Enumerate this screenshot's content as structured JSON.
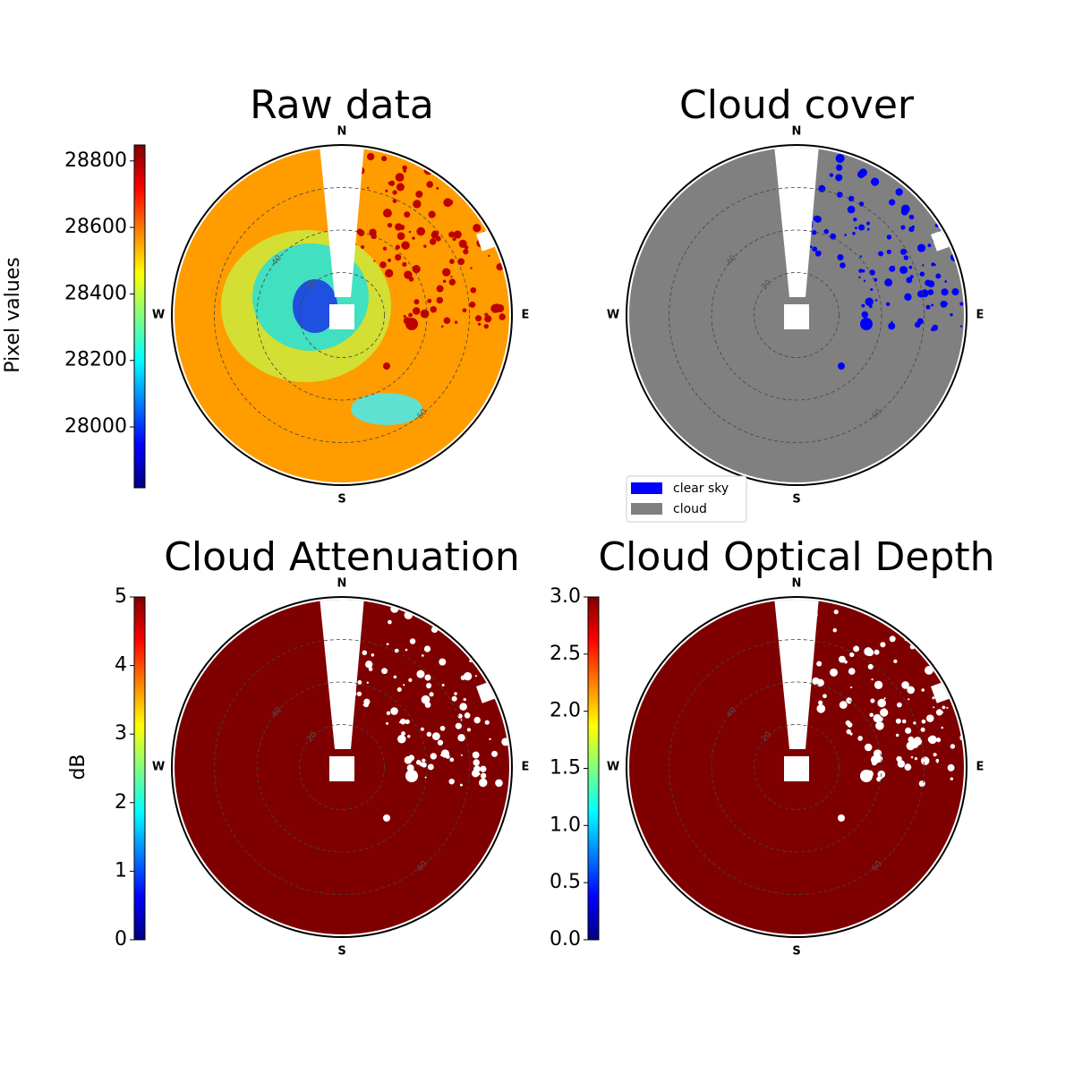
{
  "chart_data": [
    {
      "type": "polar-image",
      "title": "Raw data",
      "compass": [
        "N",
        "E",
        "S",
        "W"
      ],
      "rticks": [
        20,
        40,
        60
      ],
      "rlim": [
        0,
        80
      ],
      "fill": "#ff9c00",
      "ylabel": "Pixel values",
      "ylim": [
        27817,
        28848
      ],
      "yticks": [
        28000,
        28200,
        28400,
        28600,
        28800
      ],
      "colormap": "jet"
    },
    {
      "type": "polar-image",
      "title": "Cloud cover",
      "compass": [
        "N",
        "E",
        "S",
        "W"
      ],
      "rticks": [
        20,
        40,
        60
      ],
      "rlim": [
        0,
        80
      ],
      "fill": "#808080",
      "series": [
        {
          "name": "clear sky",
          "color": "#0000ff"
        },
        {
          "name": "cloud",
          "color": "#808080"
        }
      ]
    },
    {
      "type": "polar-image",
      "title": "Cloud Attenuation",
      "compass": [
        "N",
        "E",
        "S",
        "W"
      ],
      "rticks": [
        20,
        40,
        60
      ],
      "rlim": [
        0,
        80
      ],
      "fill": "#7f0000",
      "ylabel": "dB",
      "ylim": [
        0,
        5
      ],
      "yticks": [
        0,
        1,
        2,
        3,
        4,
        5
      ],
      "colormap": "jet"
    },
    {
      "type": "polar-image",
      "title": "Cloud Optical Depth",
      "compass": [
        "N",
        "E",
        "S",
        "W"
      ],
      "rticks": [
        20,
        40,
        60
      ],
      "rlim": [
        0,
        80
      ],
      "fill": "#7f0000",
      "ylim": [
        0,
        3
      ],
      "yticks": [
        {
          "value": 0,
          "label": "0.0"
        },
        {
          "value": 0.5,
          "label": "0.5"
        },
        {
          "value": 1,
          "label": "1.0"
        },
        {
          "value": 1.5,
          "label": "1.5"
        },
        {
          "value": 2,
          "label": "2.0"
        },
        {
          "value": 2.5,
          "label": "2.5"
        },
        {
          "value": 3,
          "label": "3.0"
        }
      ],
      "colormap": "jet"
    }
  ]
}
